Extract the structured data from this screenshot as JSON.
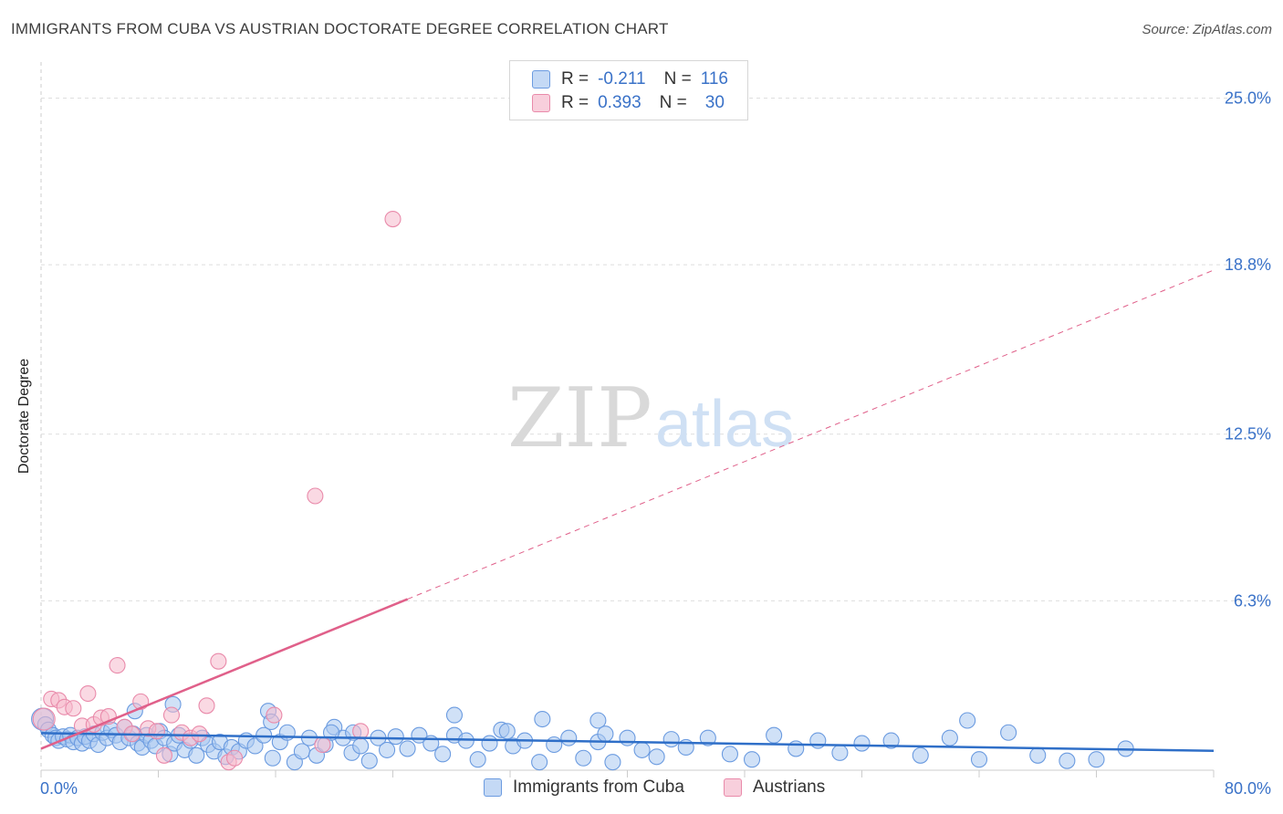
{
  "title": "IMMIGRANTS FROM CUBA VS AUSTRIAN DOCTORATE DEGREE CORRELATION CHART",
  "source": "Source: ZipAtlas.com",
  "watermark": {
    "zip": "ZIP",
    "atlas": "atlas"
  },
  "legend": {
    "r_label": "R =",
    "n_label": "N =",
    "series": [
      {
        "r": "-0.211",
        "n": "116"
      },
      {
        "r": "0.393",
        "n": "30"
      }
    ]
  },
  "colors": {
    "cuba_fill": "#aac8f0",
    "cuba_stroke": "#6b9be0",
    "cuba_line": "#2f6fc8",
    "austria_fill": "#f6b9cc",
    "austria_stroke": "#e98aaa",
    "austria_line": "#e0608a",
    "tick_text": "#3a72c8",
    "grid": "#dedede"
  },
  "chart_data": {
    "type": "scatter",
    "title": "IMMIGRANTS FROM CUBA VS AUSTRIAN DOCTORATE DEGREE CORRELATION CHART",
    "xlabel": "",
    "ylabel": "Doctorate Degree",
    "xlim": [
      0,
      80
    ],
    "ylim": [
      0,
      26
    ],
    "x_tick_labels": [
      "0.0%",
      "80.0%"
    ],
    "y_ticks": [
      6.3,
      12.5,
      18.8,
      25.0
    ],
    "y_tick_labels": [
      "6.3%",
      "12.5%",
      "18.8%",
      "25.0%"
    ],
    "grid": true,
    "legend_position": "top-center",
    "series": [
      {
        "name": "Immigrants from Cuba",
        "r": -0.211,
        "n": 116,
        "trend": {
          "x": [
            0,
            80
          ],
          "y": [
            1.38,
            0.72
          ],
          "dashed_extension": false
        },
        "points": [
          [
            0.1,
            1.9
          ],
          [
            0.3,
            1.7
          ],
          [
            0.5,
            1.5
          ],
          [
            0.8,
            1.3
          ],
          [
            1.0,
            1.2
          ],
          [
            1.2,
            1.1
          ],
          [
            1.5,
            1.25
          ],
          [
            1.8,
            1.15
          ],
          [
            2.0,
            1.3
          ],
          [
            2.2,
            1.05
          ],
          [
            2.5,
            1.2
          ],
          [
            2.8,
            1.0
          ],
          [
            3.0,
            1.25
          ],
          [
            3.3,
            1.1
          ],
          [
            3.6,
            1.35
          ],
          [
            3.9,
            0.95
          ],
          [
            4.2,
            1.4
          ],
          [
            4.5,
            1.2
          ],
          [
            4.8,
            1.5
          ],
          [
            5.1,
            1.3
          ],
          [
            5.4,
            1.05
          ],
          [
            5.7,
            1.6
          ],
          [
            6.0,
            1.2
          ],
          [
            6.3,
            1.35
          ],
          [
            6.6,
            1.0
          ],
          [
            6.9,
            0.85
          ],
          [
            7.2,
            1.3
          ],
          [
            7.5,
            1.1
          ],
          [
            7.8,
            0.9
          ],
          [
            8.1,
            1.45
          ],
          [
            8.4,
            1.2
          ],
          [
            8.8,
            0.6
          ],
          [
            9.1,
            1.0
          ],
          [
            9.4,
            1.3
          ],
          [
            9.8,
            0.75
          ],
          [
            10.2,
            1.1
          ],
          [
            10.6,
            0.55
          ],
          [
            11.0,
            1.2
          ],
          [
            11.4,
            0.95
          ],
          [
            11.8,
            0.7
          ],
          [
            12.2,
            1.05
          ],
          [
            12.6,
            0.5
          ],
          [
            13.0,
            0.85
          ],
          [
            13.5,
            0.7
          ],
          [
            14.0,
            1.1
          ],
          [
            14.6,
            0.9
          ],
          [
            15.2,
            1.3
          ],
          [
            15.8,
            0.45
          ],
          [
            16.3,
            1.05
          ],
          [
            16.8,
            1.4
          ],
          [
            17.3,
            0.3
          ],
          [
            17.8,
            0.7
          ],
          [
            18.3,
            1.2
          ],
          [
            18.8,
            0.55
          ],
          [
            19.4,
            0.95
          ],
          [
            20.0,
            1.6
          ],
          [
            20.6,
            1.2
          ],
          [
            21.2,
            0.65
          ],
          [
            21.8,
            0.9
          ],
          [
            22.4,
            0.35
          ],
          [
            23.0,
            1.2
          ],
          [
            23.6,
            0.75
          ],
          [
            24.2,
            1.25
          ],
          [
            25.0,
            0.8
          ],
          [
            25.8,
            1.3
          ],
          [
            26.6,
            1.0
          ],
          [
            27.4,
            0.6
          ],
          [
            28.2,
            1.3
          ],
          [
            29.0,
            1.1
          ],
          [
            29.8,
            0.4
          ],
          [
            30.6,
            1.0
          ],
          [
            31.4,
            1.5
          ],
          [
            32.2,
            0.9
          ],
          [
            33.0,
            1.1
          ],
          [
            34.0,
            0.3
          ],
          [
            35.0,
            0.95
          ],
          [
            36.0,
            1.2
          ],
          [
            37.0,
            0.45
          ],
          [
            38.0,
            1.05
          ],
          [
            39.0,
            0.3
          ],
          [
            40.0,
            1.2
          ],
          [
            41.0,
            0.75
          ],
          [
            42.0,
            0.5
          ],
          [
            43.0,
            1.15
          ],
          [
            44.0,
            0.85
          ],
          [
            45.5,
            1.2
          ],
          [
            47.0,
            0.6
          ],
          [
            48.5,
            0.4
          ],
          [
            50.0,
            1.3
          ],
          [
            51.5,
            0.8
          ],
          [
            53.0,
            1.1
          ],
          [
            54.5,
            0.65
          ],
          [
            56.0,
            1.0
          ],
          [
            58.0,
            1.1
          ],
          [
            60.0,
            0.55
          ],
          [
            62.0,
            1.2
          ],
          [
            64.0,
            0.4
          ],
          [
            66.0,
            1.4
          ],
          [
            68.0,
            0.55
          ],
          [
            70.0,
            0.35
          ],
          [
            72.0,
            0.4
          ],
          [
            74.0,
            0.8
          ],
          [
            6.4,
            2.2
          ],
          [
            9.0,
            2.45
          ],
          [
            15.5,
            2.2
          ],
          [
            15.7,
            1.8
          ],
          [
            19.8,
            1.4
          ],
          [
            28.2,
            2.05
          ],
          [
            31.8,
            1.45
          ],
          [
            34.2,
            1.9
          ],
          [
            38.0,
            1.85
          ],
          [
            38.5,
            1.35
          ],
          [
            63.2,
            1.85
          ],
          [
            21.3,
            1.4
          ]
        ]
      },
      {
        "name": "Austrians",
        "r": 0.393,
        "n": 30,
        "trend": {
          "x": [
            0,
            80
          ],
          "y": [
            0.8,
            18.6
          ],
          "solid_until_x": 25,
          "dashed_extension": true
        },
        "points": [
          [
            0.2,
            1.9
          ],
          [
            0.7,
            2.65
          ],
          [
            1.2,
            2.6
          ],
          [
            1.6,
            2.35
          ],
          [
            2.2,
            2.3
          ],
          [
            2.8,
            1.65
          ],
          [
            3.2,
            2.85
          ],
          [
            3.6,
            1.7
          ],
          [
            4.1,
            1.95
          ],
          [
            4.6,
            2.0
          ],
          [
            5.2,
            3.9
          ],
          [
            5.7,
            1.6
          ],
          [
            6.2,
            1.35
          ],
          [
            6.8,
            2.55
          ],
          [
            7.3,
            1.55
          ],
          [
            7.9,
            1.45
          ],
          [
            8.4,
            0.55
          ],
          [
            8.9,
            2.05
          ],
          [
            9.6,
            1.4
          ],
          [
            10.2,
            1.2
          ],
          [
            10.8,
            1.35
          ],
          [
            11.3,
            2.4
          ],
          [
            12.1,
            4.05
          ],
          [
            12.8,
            0.3
          ],
          [
            13.2,
            0.45
          ],
          [
            15.9,
            2.05
          ],
          [
            18.7,
            10.2
          ],
          [
            19.2,
            0.95
          ],
          [
            21.8,
            1.45
          ],
          [
            24.0,
            20.5
          ]
        ]
      }
    ]
  },
  "bottom_legend": [
    "Immigrants from Cuba",
    "Austrians"
  ]
}
